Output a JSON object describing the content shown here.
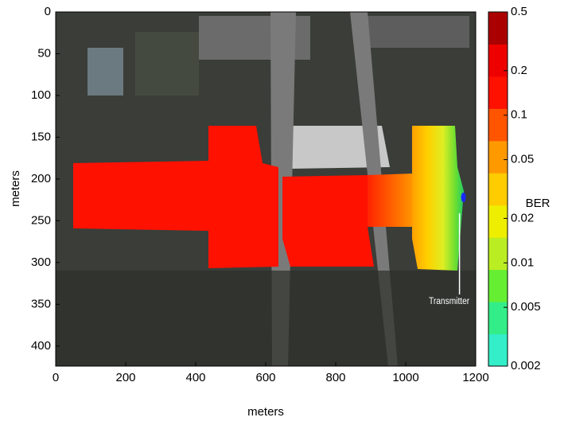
{
  "chart_data": {
    "type": "heatmap",
    "x_label": "meters",
    "y_label": "meters",
    "xlim": [
      0,
      1200
    ],
    "xticks": [
      0,
      200,
      400,
      600,
      800,
      1000,
      1200
    ],
    "ylim": [
      0,
      424
    ],
    "y_reversed": true,
    "yticks": [
      0,
      50,
      100,
      150,
      200,
      250,
      300,
      350,
      400
    ],
    "colorbar": {
      "label": "BER",
      "log_scale": true,
      "lim": [
        0.002,
        0.5
      ],
      "ticks": [
        0.002,
        0.005,
        0.01,
        0.02,
        0.05,
        0.1,
        0.2,
        0.5
      ],
      "colors": [
        "#33eec8",
        "#33ee88",
        "#66ee33",
        "#bbee22",
        "#eeee00",
        "#ffcc00",
        "#ff9900",
        "#ff5500",
        "#ff1100",
        "#ee0000",
        "#aa0000"
      ]
    },
    "transmitter": {
      "label": "Transmitter",
      "x": 1165,
      "y": 222
    }
  }
}
